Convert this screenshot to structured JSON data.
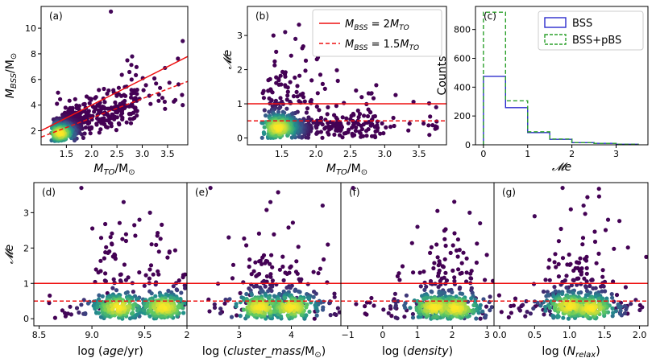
{
  "chart_data": [
    {
      "type": "scatter",
      "panel_label": "(a)",
      "xlabel_prefix": "M",
      "xlabel_sub": "TO",
      "xlabel_suffix": "/M",
      "ylabel_prefix": "M",
      "ylabel_sub": "BSS",
      "ylabel_suffix": "/M",
      "xlim": [
        1.0,
        3.9
      ],
      "ylim": [
        0.9,
        11.7
      ],
      "xticks": [
        1.5,
        2.0,
        2.5,
        3.0,
        3.5
      ],
      "xtick_labels": [
        "1.5",
        "2.0",
        "2.5",
        "3.0",
        "3.5"
      ],
      "yticks": [
        2,
        4,
        6,
        8,
        10
      ],
      "ytick_labels": [
        "2",
        "4",
        "6",
        "8",
        "10"
      ],
      "lines": [
        {
          "name": "M_BSS = 2 M_TO",
          "style": "solid",
          "color": "#ee1111",
          "x": [
            1.0,
            3.9
          ],
          "y": [
            2.0,
            7.8
          ]
        },
        {
          "name": "M_BSS = 1.5 M_TO",
          "style": "dashed",
          "color": "#ee1111",
          "x": [
            1.0,
            3.9
          ],
          "y": [
            1.5,
            5.85
          ]
        }
      ],
      "point_summary": "about 1000 blue stragglers; density colored points clustered near M_TO 1.2-1.8, M_BSS 1.5-3; outlier at (2.38, 11.3)",
      "outliers": [
        [
          2.38,
          11.3
        ],
        [
          3.8,
          9.0
        ],
        [
          2.8,
          7.8
        ],
        [
          3.45,
          6.9
        ],
        [
          3.8,
          4.0
        ]
      ]
    },
    {
      "type": "scatter",
      "panel_label": "(b)",
      "xlabel_prefix": "M",
      "xlabel_sub": "TO",
      "xlabel_suffix": "/M",
      "ylabel": "𝓜e",
      "xlim": [
        1.0,
        3.9
      ],
      "ylim": [
        -0.2,
        3.85
      ],
      "xticks": [
        1.5,
        2.0,
        2.5,
        3.0,
        3.5
      ],
      "xtick_labels": [
        "1.5",
        "2.0",
        "2.5",
        "3.0",
        "3.5"
      ],
      "yticks": [
        0,
        1,
        2,
        3
      ],
      "ytick_labels": [
        "0",
        "1",
        "2",
        "3"
      ],
      "hlines": [
        {
          "y": 1.0,
          "style": "solid",
          "color": "#ee1111"
        },
        {
          "y": 0.5,
          "style": "dashed",
          "color": "#ee1111"
        }
      ],
      "legend": {
        "placement": "top-right",
        "entries": [
          {
            "prefix": "M",
            "sub": "BSS",
            "mid": " = 2",
            "mid_m": "M",
            "mid_sub": "TO",
            "style": "solid"
          },
          {
            "prefix": "M",
            "sub": "BSS",
            "mid": " = 1.5",
            "mid_m": "M",
            "mid_sub": "TO",
            "style": "dashed"
          }
        ]
      },
      "outliers": [
        [
          2.38,
          3.7
        ],
        [
          1.55,
          3.1
        ],
        [
          1.7,
          2.9
        ],
        [
          2.8,
          1.3
        ],
        [
          3.75,
          0.9
        ]
      ]
    },
    {
      "type": "histogram",
      "panel_label": "(c)",
      "xlabel": "𝓜e",
      "ylabel": "Counts",
      "xlim": [
        -0.18,
        3.72
      ],
      "ylim": [
        0,
        960
      ],
      "xticks": [
        0,
        1,
        2,
        3
      ],
      "xtick_labels": [
        "0",
        "1",
        "2",
        "3"
      ],
      "yticks": [
        0,
        200,
        400,
        600,
        800
      ],
      "ytick_labels": [
        "0",
        "200",
        "400",
        "600",
        "800"
      ],
      "bin_edges": [
        0,
        0.5,
        1.0,
        1.5,
        2.0,
        2.5,
        3.0,
        3.5
      ],
      "series": [
        {
          "name": "BSS",
          "style": "solid",
          "color": "#2b2bcc",
          "values": [
            475,
            258,
            85,
            38,
            15,
            10,
            4
          ]
        },
        {
          "name": "BSS+pBS",
          "style": "dashed",
          "color": "#2ca02c",
          "values": [
            920,
            305,
            90,
            40,
            15,
            10,
            4
          ]
        }
      ],
      "legend": {
        "placement": "top-right",
        "entries": [
          "BSS",
          "BSS+pBS"
        ]
      }
    },
    {
      "type": "scatter",
      "panel_label": "(d)",
      "ylabel": "𝓜e",
      "xlabel_prefix": "log (",
      "xlabel_italic": "age",
      "xlabel_suffix": "/yr)",
      "xlim": [
        8.45,
        9.9
      ],
      "ylim": [
        -0.2,
        3.85
      ],
      "xticks": [
        8.5,
        9.0,
        9.5
      ],
      "xtick_labels": [
        "8.5",
        "9.0",
        "9.5"
      ],
      "yticks": [
        0,
        1,
        2,
        3
      ],
      "ytick_labels": [
        "0",
        "1",
        "2",
        "3"
      ],
      "hlines": [
        {
          "y": 1.0,
          "style": "solid"
        },
        {
          "y": 0.5,
          "style": "dashed"
        }
      ],
      "dense_centers": [
        [
          9.25,
          0.32
        ],
        [
          9.68,
          0.32
        ]
      ],
      "outliers": [
        [
          8.9,
          3.7
        ],
        [
          9.3,
          3.3
        ],
        [
          9.55,
          3.0
        ],
        [
          9.45,
          2.8
        ]
      ]
    },
    {
      "type": "scatter",
      "panel_label": "(e)",
      "xlabel_prefix": "log (",
      "xlabel_italic": "cluster_mass",
      "xlabel_suffix": "/M",
      "xlabel_end": ")",
      "xlim": [
        2.0,
        4.95
      ],
      "ylim": [
        -0.2,
        3.85
      ],
      "xticks": [
        2,
        3,
        4
      ],
      "xtick_labels": [
        "2",
        "3",
        "4"
      ],
      "hlines": [
        {
          "y": 1.0,
          "style": "solid"
        },
        {
          "y": 0.5,
          "style": "dashed"
        }
      ],
      "dense_centers": [
        [
          3.4,
          0.32
        ],
        [
          4.0,
          0.32
        ]
      ],
      "outliers": [
        [
          2.45,
          3.7
        ],
        [
          3.6,
          3.3
        ],
        [
          4.6,
          3.2
        ],
        [
          2.8,
          2.3
        ]
      ]
    },
    {
      "type": "scatter",
      "panel_label": "(f)",
      "xlabel_prefix": "log (",
      "xlabel_italic": "density",
      "xlabel_suffix": ")",
      "xlim": [
        -1.2,
        3.2
      ],
      "ylim": [
        -0.2,
        3.85
      ],
      "xticks": [
        -1,
        0,
        1,
        2,
        3
      ],
      "xtick_labels": [
        "−1",
        "0",
        "1",
        "2",
        "3"
      ],
      "hlines": [
        {
          "y": 1.0,
          "style": "solid"
        },
        {
          "y": 0.5,
          "style": "dashed"
        }
      ],
      "dense_centers": [
        [
          1.5,
          0.32
        ],
        [
          2.1,
          0.3
        ]
      ],
      "outliers": [
        [
          -0.85,
          3.7
        ],
        [
          2.5,
          3.0
        ],
        [
          2.8,
          2.7
        ],
        [
          1.0,
          2.6
        ]
      ]
    },
    {
      "type": "scatter",
      "panel_label": "(g)",
      "xlabel_prefix": "log (",
      "xlabel_italic": "N",
      "xlabel_sub": "relax",
      "xlabel_suffix": ")",
      "xlim": [
        -0.08,
        2.12
      ],
      "ylim": [
        -0.2,
        3.85
      ],
      "xticks": [
        0.0,
        0.5,
        1.0,
        1.5,
        2.0
      ],
      "xtick_labels": [
        "0.0",
        "0.5",
        "1.0",
        "1.5",
        "2.0"
      ],
      "hlines": [
        {
          "y": 1.0,
          "style": "solid"
        },
        {
          "y": 0.5,
          "style": "dashed"
        }
      ],
      "dense_centers": [
        [
          1.0,
          0.35
        ],
        [
          1.3,
          0.3
        ]
      ],
      "outliers": [
        [
          0.9,
          3.7
        ],
        [
          1.2,
          3.2
        ],
        [
          0.5,
          2.9
        ],
        [
          1.55,
          2.8
        ]
      ]
    }
  ]
}
